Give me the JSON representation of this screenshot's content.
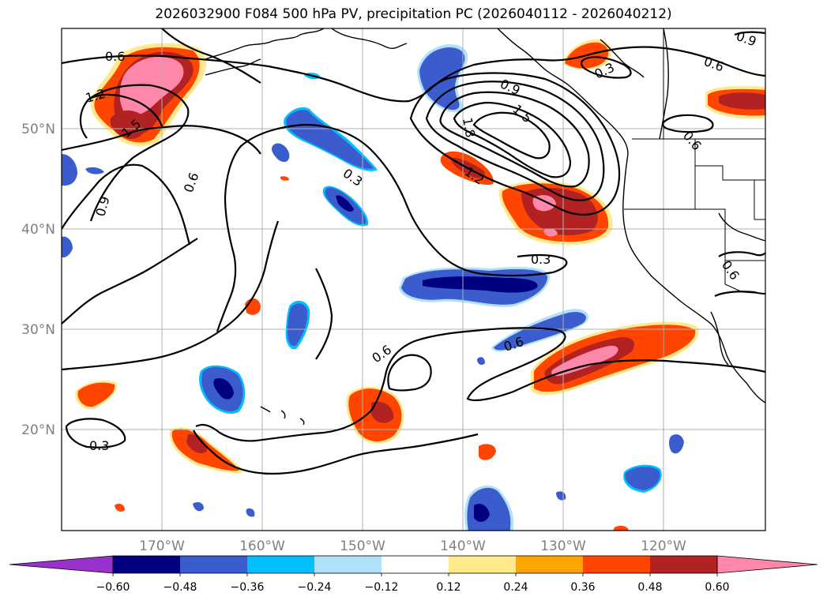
{
  "title": "2026032900 F084 500 hPa PV, precipitation PC (2026040112 - 2026040212)",
  "latitude_labels": [
    "50°N",
    "40°N",
    "30°N",
    "20°N"
  ],
  "longitude_labels": [
    "170°W",
    "160°W",
    "150°W",
    "140°W",
    "130°W",
    "120°W"
  ],
  "contour_labels": [
    "0.6",
    "1.2",
    "1.5",
    "0.9",
    "0.6",
    "0.3",
    "0.9",
    "1.5",
    "1.8",
    "1.2",
    "0.3",
    "0.6",
    "0.3",
    "0.6",
    "0.6",
    "0.3",
    "0.6",
    "0.9",
    "0.6"
  ],
  "colorbar": {
    "ticks": [
      "−0.60",
      "−0.48",
      "−0.36",
      "−0.24",
      "−0.12",
      "0.12",
      "0.24",
      "0.36",
      "0.48",
      "0.60"
    ],
    "colors": [
      "#9932cc",
      "#000080",
      "#3a5ccc",
      "#00bfff",
      "#b0e0fa",
      "#ffffff",
      "#ffe98a",
      "#ffa500",
      "#ff4500",
      "#b22222",
      "#ff88aa"
    ]
  },
  "shading_colors": {
    "pos1": "#ffe98a",
    "pos2": "#ffa500",
    "pos3": "#ff4500",
    "pos4": "#b22222",
    "pos5": "#ff88aa",
    "neg1": "#b0e0fa",
    "neg2": "#00bfff",
    "neg3": "#3a5ccc",
    "neg4": "#000080"
  }
}
